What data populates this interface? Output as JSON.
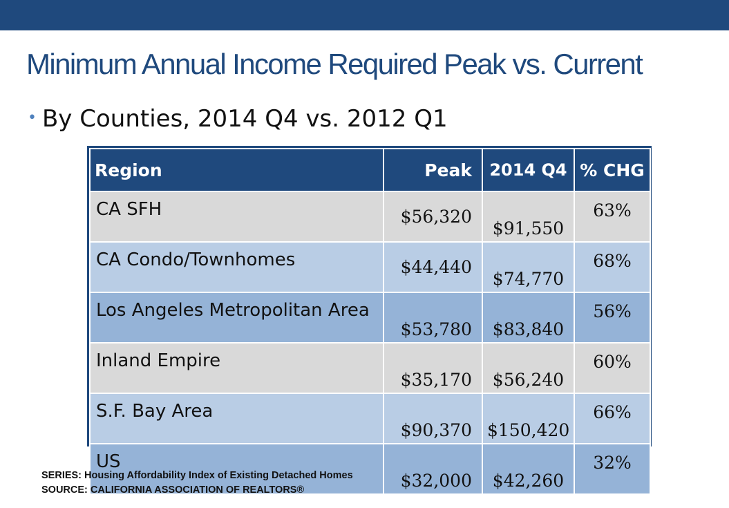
{
  "slide": {
    "title": "Minimum Annual Income Required Peak vs. Current",
    "bullet": "By Counties, 2014 Q4 vs. 2012 Q1"
  },
  "table": {
    "headers": {
      "region": "Region",
      "peak": "Peak",
      "q4": "2014 Q4",
      "chg": "% CHG"
    },
    "rows": [
      {
        "region": "CA SFH",
        "peak": "$56,320",
        "q4": "$91,550",
        "chg": "63%"
      },
      {
        "region": "CA Condo/Townhomes",
        "peak": "$44,440",
        "q4": "$74,770",
        "chg": "68%"
      },
      {
        "region": "Los Angeles Metropolitan Area",
        "peak": "$53,780",
        "q4": "$83,840",
        "chg": "56%"
      },
      {
        "region": "Inland Empire",
        "peak": "$35,170",
        "q4": "$56,240",
        "chg": "60%"
      },
      {
        "region": "S.F. Bay Area",
        "peak": "$90,370",
        "q4": "$150,420",
        "chg": "66%"
      },
      {
        "region": "US",
        "peak": "$32,000",
        "q4": "$42,260",
        "chg": "32%"
      }
    ]
  },
  "footnotes": {
    "series": "SERIES: Housing Affordability Index of Existing Detached Homes",
    "source": "SOURCE:  CALIFORNIA ASSOCIATION OF REALTORS®"
  },
  "colors": {
    "accent": "#1f497d",
    "row_gray": "#d9d9d9",
    "row_light_blue": "#b9cde5",
    "row_mid_blue": "#95b3d7"
  }
}
